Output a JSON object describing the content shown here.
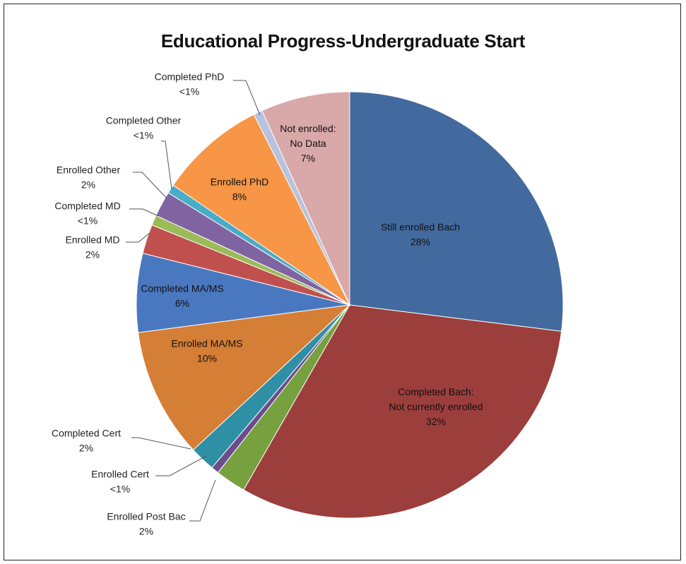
{
  "chart_data": {
    "type": "pie",
    "title": "Educational Progress-Undergraduate Start",
    "slices": [
      {
        "name": "Still enrolled Bach",
        "value": 28.0,
        "display": "28%",
        "color": "#426A9E"
      },
      {
        "name": "Completed Bach: Not currently enrolled",
        "lines": [
          "Completed Bach:",
          "Not currently enrolled"
        ],
        "value": 32.5,
        "display": "32%",
        "color": "#9C3E3C"
      },
      {
        "name": "Enrolled Post Bac",
        "value": 2.4,
        "display": "2%",
        "color": "#77A03F"
      },
      {
        "name": "Enrolled Cert",
        "value": 0.6,
        "display": "<1%",
        "color": "#6C4D8C"
      },
      {
        "name": "Completed Cert",
        "value": 2.0,
        "display": "2%",
        "color": "#2F8FA5"
      },
      {
        "name": "Enrolled MA/MS",
        "value": 10.2,
        "display": "10%",
        "color": "#D57E35"
      },
      {
        "name": "Completed MA/MS",
        "value": 6.2,
        "display": "6%",
        "color": "#4A78C0"
      },
      {
        "name": "Enrolled MD",
        "value": 2.3,
        "display": "2%",
        "color": "#C0504D"
      },
      {
        "name": "Completed MD",
        "value": 0.8,
        "display": "<1%",
        "color": "#9BBB59"
      },
      {
        "name": "Enrolled Other",
        "value": 2.0,
        "display": "2%",
        "color": "#8064A2"
      },
      {
        "name": "Completed Other",
        "value": 0.7,
        "display": "<1%",
        "color": "#4BACC6"
      },
      {
        "name": "Enrolled PhD",
        "value": 8.4,
        "display": "8%",
        "color": "#F79646"
      },
      {
        "name": "Completed PhD",
        "value": 0.7,
        "display": "<1%",
        "color": "#B7C2DE"
      },
      {
        "name": "Not enrolled: No Data",
        "lines": [
          "Not enrolled:",
          "No Data"
        ],
        "value": 7.0,
        "display": "7%",
        "color": "#D9A8A8"
      }
    ],
    "start_angle": "12 o'clock",
    "direction": "clockwise",
    "legend": "none",
    "grid": false
  }
}
